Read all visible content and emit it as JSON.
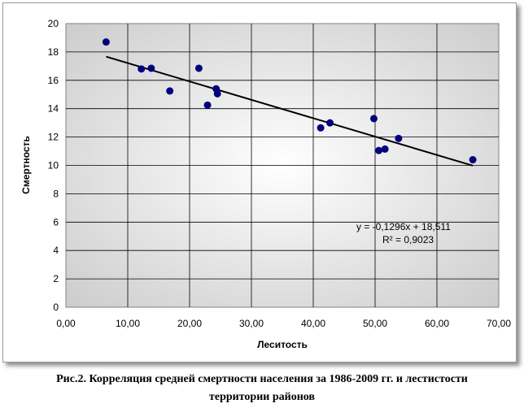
{
  "chart_data": {
    "type": "scatter",
    "title": "",
    "xlabel": "Леситость",
    "ylabel": "Смертность",
    "xlim": [
      0,
      70
    ],
    "ylim": [
      0,
      20
    ],
    "x_ticks": [
      "0,00",
      "10,00",
      "20,00",
      "30,00",
      "40,00",
      "50,00",
      "60,00",
      "70,00"
    ],
    "y_ticks": [
      "0",
      "2",
      "4",
      "6",
      "8",
      "10",
      "12",
      "14",
      "16",
      "18",
      "20"
    ],
    "grid": true,
    "legend": "none",
    "series": [
      {
        "points": [
          {
            "x": 6.5,
            "y": 18.7
          },
          {
            "x": 12.2,
            "y": 16.8
          },
          {
            "x": 13.8,
            "y": 16.85
          },
          {
            "x": 16.8,
            "y": 15.25
          },
          {
            "x": 21.5,
            "y": 16.85
          },
          {
            "x": 22.9,
            "y": 14.25
          },
          {
            "x": 24.3,
            "y": 15.4
          },
          {
            "x": 24.5,
            "y": 15.05
          },
          {
            "x": 41.2,
            "y": 12.65
          },
          {
            "x": 42.7,
            "y": 13.0
          },
          {
            "x": 49.8,
            "y": 13.3
          },
          {
            "x": 50.6,
            "y": 11.05
          },
          {
            "x": 51.6,
            "y": 11.15
          },
          {
            "x": 53.8,
            "y": 11.9
          },
          {
            "x": 65.8,
            "y": 10.4
          }
        ]
      }
    ],
    "trendline": {
      "slope": -0.1296,
      "intercept": 18.511,
      "x_range": [
        6.5,
        65.8
      ],
      "equation": "y = -0,1296x + 18,511",
      "r_squared": "R² = 0,9023"
    },
    "colors": {
      "marker": "#00007f",
      "trendline": "#000000",
      "plot_bg_center": "#ffffff",
      "plot_bg_edge": "#c9c9c9",
      "gridline": "#000000"
    }
  },
  "caption": {
    "line1": "Рис.2. Корреляция средней смертности населения за 1986-2009 гг. и лестистости",
    "line2": "территории районов"
  }
}
